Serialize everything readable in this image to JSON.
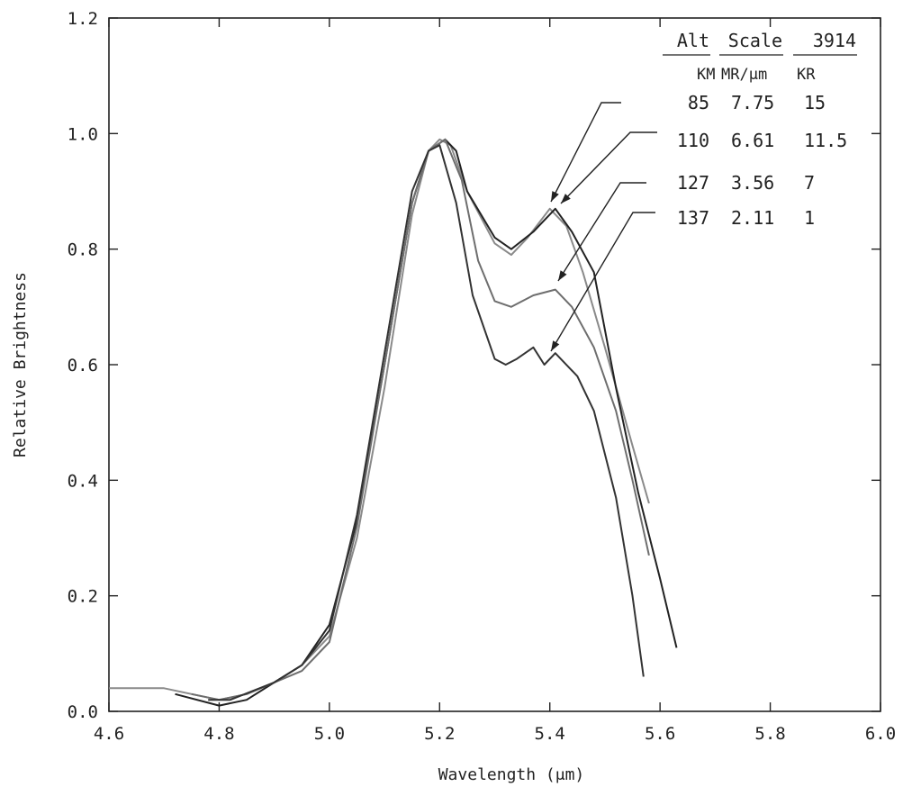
{
  "chart_data": {
    "type": "line",
    "xlabel": "Wavelength (μm)",
    "ylabel": "Relative Brightness",
    "xlim": [
      4.6,
      6.0
    ],
    "ylim": [
      0.0,
      1.2
    ],
    "x_ticks": [
      "4.6",
      "4.8",
      "5.0",
      "5.2",
      "5.4",
      "5.6",
      "5.8",
      "6.0"
    ],
    "y_ticks": [
      "0.0",
      "0.2",
      "0.4",
      "0.6",
      "0.8",
      "1.0",
      "1.2"
    ],
    "grid": false,
    "legend_placement": "top-right",
    "legend": {
      "headers": [
        "Alt",
        "Scale",
        "3914"
      ],
      "units": [
        "KM",
        "MR/μm",
        "KR"
      ],
      "rows": [
        [
          "85",
          "7.75",
          "15"
        ],
        [
          "110",
          "6.61",
          "11.5"
        ],
        [
          "127",
          "3.56",
          "7"
        ],
        [
          "137",
          "2.11",
          "1"
        ]
      ]
    },
    "series": [
      {
        "color": "#8a8a8a",
        "points": [
          [
            4.6,
            0.04
          ],
          [
            4.7,
            0.04
          ],
          [
            4.75,
            0.03
          ],
          [
            4.8,
            0.02
          ],
          [
            4.85,
            0.03
          ],
          [
            4.9,
            0.05
          ],
          [
            4.95,
            0.08
          ],
          [
            5.0,
            0.13
          ],
          [
            5.05,
            0.3
          ],
          [
            5.1,
            0.56
          ],
          [
            5.15,
            0.86
          ],
          [
            5.18,
            0.97
          ],
          [
            5.2,
            0.99
          ],
          [
            5.22,
            0.98
          ],
          [
            5.25,
            0.9
          ],
          [
            5.3,
            0.81
          ],
          [
            5.33,
            0.79
          ],
          [
            5.36,
            0.82
          ],
          [
            5.4,
            0.87
          ],
          [
            5.43,
            0.84
          ],
          [
            5.46,
            0.76
          ],
          [
            5.5,
            0.63
          ],
          [
            5.55,
            0.46
          ],
          [
            5.58,
            0.36
          ]
        ]
      },
      {
        "color": "#222222",
        "points": [
          [
            4.72,
            0.03
          ],
          [
            4.8,
            0.01
          ],
          [
            4.85,
            0.02
          ],
          [
            4.9,
            0.05
          ],
          [
            4.95,
            0.08
          ],
          [
            5.0,
            0.15
          ],
          [
            5.05,
            0.33
          ],
          [
            5.1,
            0.6
          ],
          [
            5.15,
            0.88
          ],
          [
            5.18,
            0.97
          ],
          [
            5.21,
            0.99
          ],
          [
            5.23,
            0.97
          ],
          [
            5.25,
            0.9
          ],
          [
            5.3,
            0.82
          ],
          [
            5.33,
            0.8
          ],
          [
            5.37,
            0.83
          ],
          [
            5.41,
            0.87
          ],
          [
            5.44,
            0.83
          ],
          [
            5.48,
            0.76
          ],
          [
            5.52,
            0.56
          ],
          [
            5.56,
            0.38
          ],
          [
            5.6,
            0.23
          ],
          [
            5.63,
            0.11
          ]
        ]
      },
      {
        "color": "#6e6e6e",
        "points": [
          [
            4.75,
            0.03
          ],
          [
            4.8,
            0.02
          ],
          [
            4.85,
            0.03
          ],
          [
            4.9,
            0.05
          ],
          [
            4.95,
            0.07
          ],
          [
            5.0,
            0.12
          ],
          [
            5.05,
            0.32
          ],
          [
            5.1,
            0.6
          ],
          [
            5.15,
            0.88
          ],
          [
            5.18,
            0.97
          ],
          [
            5.21,
            0.99
          ],
          [
            5.24,
            0.92
          ],
          [
            5.27,
            0.78
          ],
          [
            5.3,
            0.71
          ],
          [
            5.33,
            0.7
          ],
          [
            5.37,
            0.72
          ],
          [
            5.41,
            0.73
          ],
          [
            5.44,
            0.7
          ],
          [
            5.48,
            0.63
          ],
          [
            5.52,
            0.52
          ],
          [
            5.55,
            0.4
          ],
          [
            5.58,
            0.27
          ]
        ]
      },
      {
        "color": "#333333",
        "points": [
          [
            4.78,
            0.02
          ],
          [
            4.82,
            0.02
          ],
          [
            4.9,
            0.05
          ],
          [
            4.95,
            0.08
          ],
          [
            5.0,
            0.14
          ],
          [
            5.05,
            0.34
          ],
          [
            5.1,
            0.62
          ],
          [
            5.15,
            0.9
          ],
          [
            5.18,
            0.97
          ],
          [
            5.2,
            0.98
          ],
          [
            5.23,
            0.88
          ],
          [
            5.26,
            0.72
          ],
          [
            5.3,
            0.61
          ],
          [
            5.32,
            0.6
          ],
          [
            5.34,
            0.61
          ],
          [
            5.37,
            0.63
          ],
          [
            5.39,
            0.6
          ],
          [
            5.41,
            0.62
          ],
          [
            5.45,
            0.58
          ],
          [
            5.48,
            0.52
          ],
          [
            5.52,
            0.37
          ],
          [
            5.55,
            0.2
          ],
          [
            5.57,
            0.06
          ]
        ]
      }
    ]
  }
}
